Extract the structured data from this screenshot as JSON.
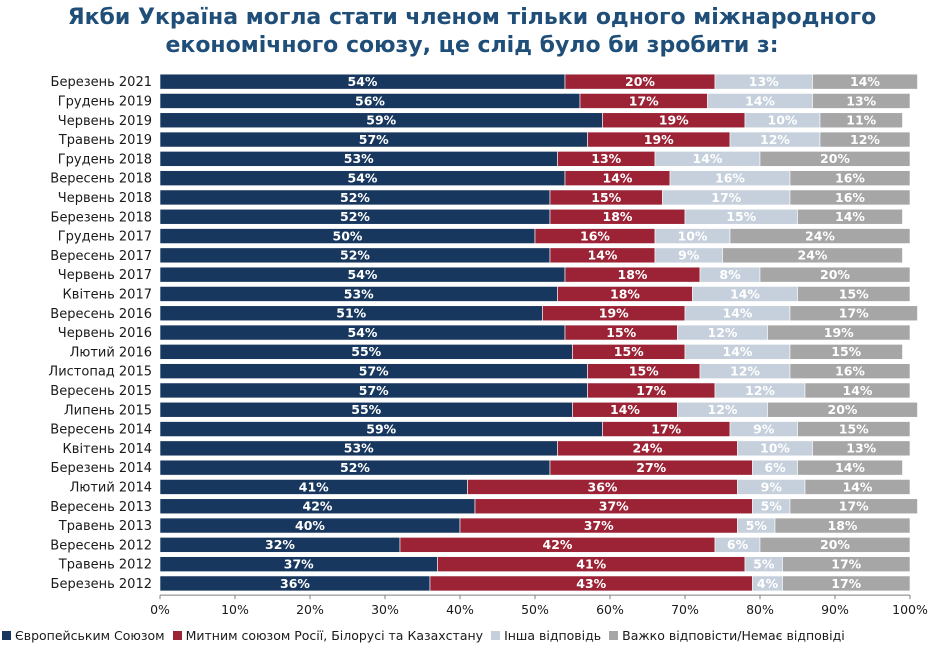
{
  "chart_data": {
    "type": "bar",
    "orientation": "horizontal",
    "stacked": true,
    "title": "Якби Україна могла стати членом тільки одного міжнародного економічного союзу, це слід було би зробити з:",
    "categories": [
      "Березень 2021",
      "Грудень 2019",
      "Червень 2019",
      "Травень 2019",
      "Грудень 2018",
      "Вересень 2018",
      "Червень 2018",
      "Березень 2018",
      "Грудень 2017",
      "Вересень 2017",
      "Червень 2017",
      "Квітень 2017",
      "Вересень 2016",
      "Червень 2016",
      "Лютий 2016",
      "Листопад 2015",
      "Вересень 2015",
      "Липень 2015",
      "Вересень 2014",
      "Квітень 2014",
      "Березень 2014",
      "Лютий 2014",
      "Вересень 2013",
      "Травень 2013",
      "Вересень 2012",
      "Травень 2012",
      "Березень 2012"
    ],
    "series": [
      {
        "name": "Європейським Союзом",
        "color": "#17375e",
        "values": [
          54,
          56,
          59,
          57,
          53,
          54,
          52,
          52,
          50,
          52,
          54,
          53,
          51,
          54,
          55,
          57,
          57,
          55,
          59,
          53,
          52,
          41,
          42,
          40,
          32,
          37,
          36
        ]
      },
      {
        "name": "Митним союзом Росії, Білорусі та Казахстану",
        "color": "#9b2335",
        "values": [
          20,
          17,
          19,
          19,
          13,
          14,
          15,
          18,
          16,
          14,
          18,
          18,
          19,
          15,
          15,
          15,
          17,
          14,
          17,
          24,
          27,
          36,
          37,
          37,
          42,
          41,
          43
        ]
      },
      {
        "name": "Інша відповідь",
        "color": "#c6d0dc",
        "values": [
          13,
          14,
          10,
          12,
          14,
          16,
          17,
          15,
          10,
          9,
          8,
          14,
          14,
          12,
          14,
          12,
          12,
          12,
          9,
          10,
          6,
          9,
          5,
          5,
          6,
          5,
          4
        ]
      },
      {
        "name": "Важко відповісти/Немає відповіді",
        "color": "#a6a6a6",
        "values": [
          14,
          13,
          11,
          12,
          20,
          16,
          16,
          14,
          24,
          24,
          20,
          15,
          17,
          19,
          15,
          16,
          14,
          20,
          15,
          13,
          14,
          14,
          17,
          18,
          20,
          17,
          17
        ]
      }
    ],
    "xlim": [
      0,
      100
    ],
    "xticks": [
      "0%",
      "10%",
      "20%",
      "30%",
      "40%",
      "50%",
      "60%",
      "70%",
      "80%",
      "90%",
      "100%"
    ],
    "grid": false,
    "legend": "bottom"
  }
}
